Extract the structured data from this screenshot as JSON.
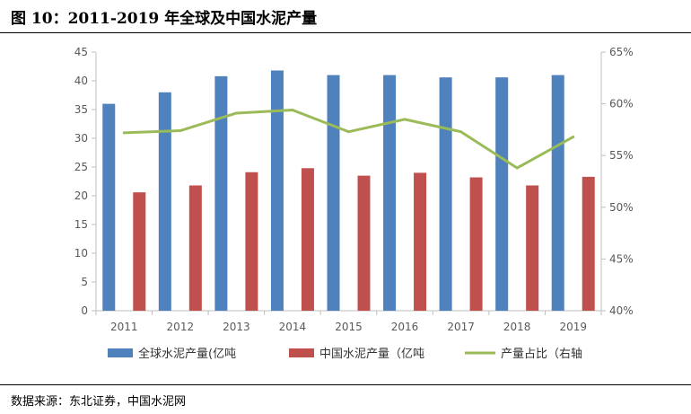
{
  "figure": {
    "title": "图 10：2011-2019 年全球及中国水泥产量",
    "source": "数据来源：东北证券，中国水泥网"
  },
  "chart_data": {
    "type": "bar",
    "categories": [
      "2011",
      "2012",
      "2013",
      "2014",
      "2015",
      "2016",
      "2017",
      "2018",
      "2019"
    ],
    "series": [
      {
        "name": "全球水泥产量(亿吨",
        "type": "bar",
        "axis": "left",
        "color": "#4F81BD",
        "values": [
          36.0,
          38.0,
          40.8,
          41.8,
          41.0,
          41.0,
          40.6,
          40.6,
          41.0
        ]
      },
      {
        "name": "中国水泥产量（亿吨",
        "type": "bar",
        "axis": "left",
        "color": "#C0504D",
        "values": [
          20.6,
          21.8,
          24.1,
          24.8,
          23.5,
          24.0,
          23.2,
          21.8,
          23.3
        ]
      },
      {
        "name": "产量占比（右轴",
        "type": "line",
        "axis": "right",
        "color": "#9BBB59",
        "values": [
          57.2,
          57.4,
          59.1,
          59.4,
          57.3,
          58.5,
          57.3,
          53.8,
          56.8
        ]
      }
    ],
    "y_left": {
      "min": 0,
      "max": 45,
      "step": 5,
      "ticks": [
        "0",
        "5",
        "10",
        "15",
        "20",
        "25",
        "30",
        "35",
        "40",
        "45"
      ]
    },
    "y_right": {
      "min": 40,
      "max": 65,
      "step": 5,
      "ticks": [
        "40%",
        "45%",
        "50%",
        "55%",
        "60%",
        "65%"
      ]
    },
    "grid": false,
    "legend_position": "bottom"
  }
}
